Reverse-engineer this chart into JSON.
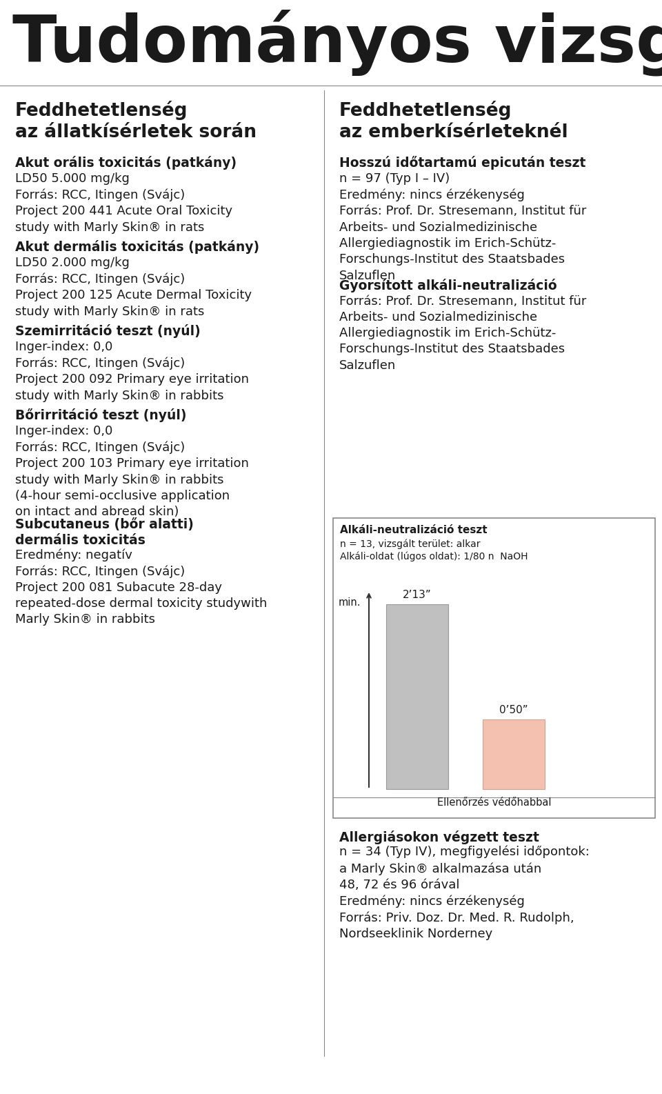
{
  "bg_color": "#ffffff",
  "title": "Tudományos vizsgálatok",
  "title_fontsize": 68,
  "title_color": "#1a1a1a",
  "col1_header": "Feddhetetlenség\naz állatkísérletek során",
  "col2_header": "Feddhetetlenség\naz emberkísérleteknél",
  "header_fontsize": 19,
  "section_heading_fontsize": 13.5,
  "section_body_fontsize": 13,
  "col1_sections": [
    {
      "heading": "Akut orális toxicitás (patkány)",
      "body": "LD50 5.000 mg/kg\nForrás: RCC, Itingen (Svájc)\nProject 200 441 Acute Oral Toxicity\nstudy with Marly Skin® in rats"
    },
    {
      "heading": "Akut dermális toxicitás (patkány)",
      "body": "LD50 2.000 mg/kg\nForrás: RCC, Itingen (Svájc)\nProject 200 125 Acute Dermal Toxicity\nstudy with Marly Skin® in rats"
    },
    {
      "heading": "Szemirritáció teszt (nyúl)",
      "body": "Inger-index: 0,0\nForrás: RCC, Itingen (Svájc)\nProject 200 092 Primary eye irritation\nstudy with Marly Skin® in rabbits"
    },
    {
      "heading": "Bőrirritáció teszt (nyúl)",
      "body": "Inger-index: 0,0\nForrás: RCC, Itingen (Svájc)\nProject 200 103 Primary eye irritation\nstudy with Marly Skin® in rabbits\n(4-hour semi-occlusive application\non intact and abread skin)"
    },
    {
      "heading": "Subcutaneus (bőr alatti)\ndermális toxicitás",
      "body": "Eredmény: negatív\nForrás: RCC, Itingen (Svájc)\nProject 200 081 Subacute 28-day\nrepeated-dose dermal toxicity studywith\nMarly Skin® in rabbits"
    }
  ],
  "col2_sections": [
    {
      "heading": "Hosszú időtartamú epicután teszt",
      "body": "n = 97 (Typ I – IV)\nEredmény: nincs érzékenység\nForrás: Prof. Dr. Stresemann, Institut für\nArbeits- und Sozialmedizinische\nAllergiediagnostik im Erich-Schütz-\nForschungs-Institut des Staatsbades\nSalzuflen"
    },
    {
      "heading": "Gyorsított alkáli-neutralizáció",
      "body": "Forrás: Prof. Dr. Stresemann, Institut für\nArbeits- und Sozialmedizinische\nAllergiediagnostik im Erich-Schütz-\nForschungs-Institut des Staatsbades\nSalzuflen"
    }
  ],
  "chart_box_title": "Alkáli-neutralizáció teszt",
  "chart_box_subtitle1": "n = 13, vizsgált terület: alkar",
  "chart_box_subtitle2": "Alkáli-oldat (lúgos oldat): 1/80 n  NaOH",
  "chart_ylabel": "min.",
  "chart_bar1_label": "2’13”",
  "chart_bar2_label": "0’50”",
  "chart_bar1_color": "#c0c0c0",
  "chart_bar2_color": "#f4c0b0",
  "chart_footer": "Ellenőrzés védőhabbal",
  "allergia_heading": "Allergiásokon végzett teszt",
  "allergia_body": "n = 34 (Typ IV), megfigyelési időpontok:\na Marly Skin® alkalmazása után\n48, 72 és 96 órával\nEredmény: nincs érzékenység\nForrás: Priv. Doz. Dr. Med. R. Rudolph,\nNordseeklinik Norderney",
  "divider_color": "#888888",
  "box_border_color": "#888888"
}
